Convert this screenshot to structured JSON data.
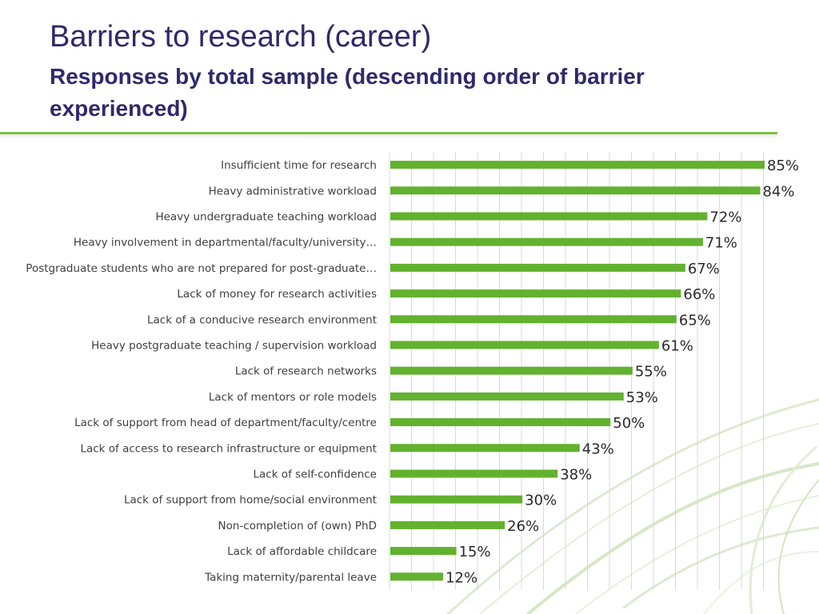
{
  "title": "Barriers to research (career)",
  "subtitle": "Responses by total sample (descending order of barrier experienced)",
  "colors": {
    "bar": "#62b12f",
    "title": "#2e2a6b",
    "rule": "#7ac143",
    "grid": "#d9d9d9"
  },
  "chart_data": {
    "type": "bar",
    "orientation": "horizontal",
    "grid": true,
    "xlim": [
      0,
      85
    ],
    "categories": [
      "Insufficient time for research",
      "Heavy administrative workload",
      "Heavy undergraduate teaching workload",
      "Heavy involvement in departmental/faculty/university…",
      "Postgraduate students who are not prepared for post-graduate…",
      "Lack of money for research activities",
      "Lack of a conducive research environment",
      "Heavy postgraduate teaching / supervision workload",
      "Lack of research networks",
      "Lack of mentors or role models",
      "Lack of support from head of department/faculty/centre",
      "Lack of access to research infrastructure or equipment",
      "Lack of self-confidence",
      "Lack of support from home/social environment",
      "Non-completion of (own) PhD",
      "Lack of affordable childcare",
      "Taking maternity/parental leave"
    ],
    "values": [
      85,
      84,
      72,
      71,
      67,
      66,
      65,
      61,
      55,
      53,
      50,
      43,
      38,
      30,
      26,
      15,
      12
    ],
    "value_labels": [
      "85%",
      "84%",
      "72%",
      "71%",
      "67%",
      "66%",
      "65%",
      "61%",
      "55%",
      "53%",
      "50%",
      "43%",
      "38%",
      "30%",
      "26%",
      "15%",
      "12%"
    ]
  }
}
